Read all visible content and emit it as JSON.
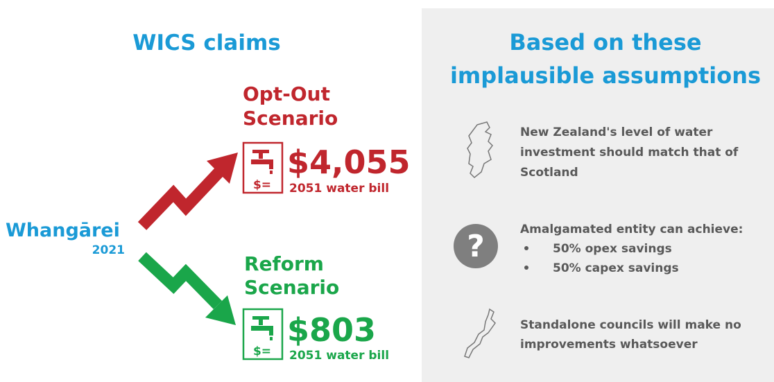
{
  "claims": {
    "title": "WICS claims",
    "origin": {
      "place": "Whangārei",
      "year": "2021"
    },
    "opt_out": {
      "lines": [
        "Opt-Out",
        "Scenario"
      ],
      "icon_text": "$=",
      "amount": "$4,055",
      "caption": "2051 water bill"
    },
    "reform": {
      "lines": [
        "Reform",
        "Scenario"
      ],
      "icon_text": "$=",
      "amount": "$803",
      "caption": "2051 water bill"
    }
  },
  "assumptions": {
    "title": [
      "Based on these",
      "implausible assumptions"
    ],
    "items": [
      {
        "lines": [
          "New Zealand's level of water",
          "investment should match that of",
          "Scotland"
        ]
      },
      {
        "icon": "?",
        "lines": [
          "Amalgamated entity can achieve:"
        ],
        "bullets": [
          "50% opex savings",
          "50% capex savings"
        ]
      },
      {
        "lines": [
          "Standalone councils will make no",
          "improvements whatsoever"
        ]
      }
    ]
  }
}
